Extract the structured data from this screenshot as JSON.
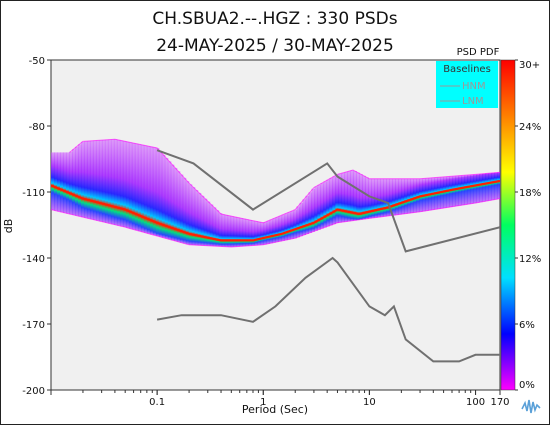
{
  "chart_data": {
    "type": "heatmap",
    "title_line1": "CH.SBUA2.--.HGZ : 330 PSDs",
    "title_line2": "24-MAY-2025 / 30-MAY-2025",
    "xlabel": "Period (Sec)",
    "ylabel": "dB",
    "x_scale": "log",
    "xlim": [
      0.01,
      170
    ],
    "ylim": [
      -200,
      -50
    ],
    "x_ticks": [
      {
        "value": 0.1,
        "label": "0.1"
      },
      {
        "value": 1,
        "label": "1"
      },
      {
        "value": 10,
        "label": "10"
      },
      {
        "value": 100,
        "label": "100"
      },
      {
        "value": 170,
        "label": "170"
      }
    ],
    "y_ticks": [
      {
        "value": -50,
        "label": "-50"
      },
      {
        "value": -80,
        "label": "-80"
      },
      {
        "value": -110,
        "label": "-110"
      },
      {
        "value": -140,
        "label": "-140"
      },
      {
        "value": -170,
        "label": "-170"
      },
      {
        "value": -200,
        "label": "-200"
      }
    ],
    "colorbar": {
      "title": "PSD PDF",
      "colors": [
        "#ff00ff",
        "#0000ff",
        "#00e0ff",
        "#00ff60",
        "#ffff00",
        "#ff8000",
        "#ff0000"
      ],
      "ticks": [
        {
          "value": 0,
          "label": "0%"
        },
        {
          "value": 6,
          "label": "6%"
        },
        {
          "value": 12,
          "label": "12%"
        },
        {
          "value": 18,
          "label": "18%"
        },
        {
          "value": 24,
          "label": "24%"
        },
        {
          "value": 30,
          "label": "30+"
        }
      ]
    },
    "legend": {
      "title": "Baselines",
      "placement": "top-right",
      "items": [
        {
          "label": "HNM",
          "color": "#d0d0d0"
        },
        {
          "label": "LNM",
          "color": "#d0d0d0"
        }
      ],
      "background": "#00ffff"
    },
    "series": [
      {
        "name": "HNM",
        "role": "baseline",
        "color": "#707070",
        "points": [
          [
            0.1,
            -91
          ],
          [
            0.22,
            -97
          ],
          [
            0.8,
            -118
          ],
          [
            4.0,
            -97
          ],
          [
            5.0,
            -103
          ],
          [
            10,
            -112
          ],
          [
            15,
            -115
          ],
          [
            22,
            -137
          ],
          [
            170,
            -126
          ]
        ]
      },
      {
        "name": "LNM",
        "role": "baseline",
        "color": "#707070",
        "points": [
          [
            0.1,
            -168
          ],
          [
            0.17,
            -166
          ],
          [
            0.4,
            -166
          ],
          [
            0.8,
            -169
          ],
          [
            1.3,
            -162
          ],
          [
            2.5,
            -149
          ],
          [
            4.5,
            -140
          ],
          [
            5.0,
            -142
          ],
          [
            10,
            -162
          ],
          [
            14,
            -166
          ],
          [
            17,
            -162
          ],
          [
            22,
            -177
          ],
          [
            40,
            -187
          ],
          [
            70,
            -187
          ],
          [
            100,
            -184
          ],
          [
            170,
            -184
          ]
        ]
      },
      {
        "name": "mode",
        "role": "psd-ridge",
        "color": "#ff2000",
        "points": [
          [
            0.01,
            -107
          ],
          [
            0.02,
            -113
          ],
          [
            0.05,
            -118
          ],
          [
            0.1,
            -124
          ],
          [
            0.2,
            -129
          ],
          [
            0.4,
            -132
          ],
          [
            0.8,
            -132
          ],
          [
            1.5,
            -129
          ],
          [
            3.0,
            -124
          ],
          [
            5.0,
            -118
          ],
          [
            8.0,
            -120
          ],
          [
            15,
            -117
          ],
          [
            30,
            -112
          ],
          [
            60,
            -109
          ],
          [
            100,
            -107
          ],
          [
            170,
            -105
          ]
        ]
      },
      {
        "name": "max",
        "role": "psd-outline",
        "color": "#ff00ff",
        "points": [
          [
            0.015,
            -92
          ],
          [
            0.02,
            -87
          ],
          [
            0.04,
            -86
          ],
          [
            0.1,
            -90
          ],
          [
            0.2,
            -106
          ],
          [
            0.4,
            -120
          ],
          [
            1.0,
            -124
          ],
          [
            2.0,
            -118
          ],
          [
            3.0,
            -108
          ],
          [
            5.0,
            -102
          ],
          [
            7.0,
            -100
          ],
          [
            10,
            -104
          ],
          [
            30,
            -104
          ],
          [
            100,
            -102
          ],
          [
            170,
            -101
          ]
        ]
      },
      {
        "name": "min",
        "role": "psd-outline",
        "color": "#ff00ff",
        "points": [
          [
            0.01,
            -118
          ],
          [
            0.05,
            -126
          ],
          [
            0.1,
            -130
          ],
          [
            0.2,
            -134
          ],
          [
            0.5,
            -135
          ],
          [
            1.0,
            -134
          ],
          [
            2.0,
            -131
          ],
          [
            5.0,
            -124
          ],
          [
            10,
            -122
          ],
          [
            30,
            -119
          ],
          [
            100,
            -115
          ],
          [
            170,
            -113
          ]
        ]
      }
    ]
  }
}
